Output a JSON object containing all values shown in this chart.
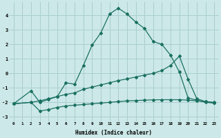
{
  "xlabel": "Humidex (Indice chaleur)",
  "background_color": "#cce8e8",
  "grid_color": "#aacece",
  "line_color": "#1a7060",
  "xlim": [
    -0.5,
    23.5
  ],
  "ylim": [
    -3.3,
    4.9
  ],
  "xtick_vals": [
    0,
    1,
    2,
    3,
    4,
    5,
    6,
    7,
    8,
    9,
    10,
    11,
    12,
    13,
    14,
    15,
    16,
    17,
    18,
    19,
    20,
    21,
    22,
    23
  ],
  "ytick_vals": [
    -3,
    -2,
    -1,
    0,
    1,
    2,
    3,
    4
  ],
  "line1_x": [
    0,
    2,
    3,
    4,
    5,
    6,
    7,
    8,
    9,
    10,
    11,
    12,
    13,
    14,
    15,
    16,
    17,
    18,
    19,
    20,
    21,
    22,
    23
  ],
  "line1_y": [
    -2.1,
    -1.2,
    -2.0,
    -1.8,
    -1.6,
    -0.65,
    -0.75,
    0.55,
    1.95,
    2.8,
    4.1,
    4.5,
    4.1,
    3.55,
    3.1,
    2.2,
    2.0,
    1.25,
    0.1,
    -1.7,
    -1.85,
    -2.0,
    -2.05
  ],
  "line2_x": [
    0,
    2,
    3,
    4,
    5,
    6,
    7,
    8,
    9,
    10,
    11,
    12,
    13,
    14,
    15,
    16,
    17,
    18,
    19,
    20,
    21,
    22,
    23
  ],
  "line2_y": [
    -2.1,
    -2.0,
    -1.9,
    -1.75,
    -1.6,
    -1.45,
    -1.35,
    -1.1,
    -0.95,
    -0.8,
    -0.65,
    -0.5,
    -0.38,
    -0.25,
    -0.12,
    0.0,
    0.2,
    0.55,
    1.2,
    -0.4,
    -1.75,
    -1.95,
    -2.05
  ],
  "line3_x": [
    0,
    2,
    3,
    4,
    5,
    6,
    7,
    8,
    9,
    10,
    11,
    12,
    13,
    14,
    15,
    16,
    17,
    18,
    19,
    20,
    21,
    22,
    23
  ],
  "line3_y": [
    -2.1,
    -2.0,
    -2.6,
    -2.5,
    -2.35,
    -2.25,
    -2.2,
    -2.15,
    -2.1,
    -2.05,
    -2.0,
    -1.95,
    -1.9,
    -1.88,
    -1.85,
    -1.83,
    -1.82,
    -1.82,
    -1.82,
    -1.85,
    -1.9,
    -1.95,
    -2.0
  ]
}
